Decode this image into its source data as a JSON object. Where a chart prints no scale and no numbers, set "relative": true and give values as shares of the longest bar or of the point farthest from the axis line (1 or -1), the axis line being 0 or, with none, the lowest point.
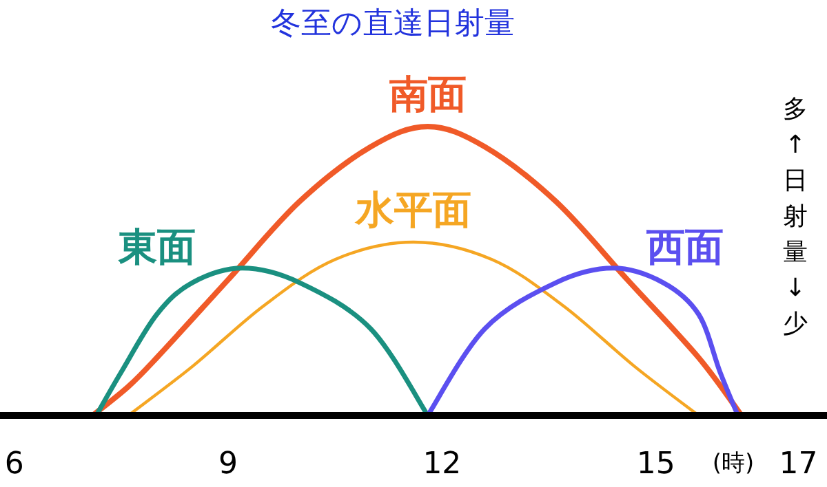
{
  "chart_data": {
    "type": "line",
    "title": "冬至の直達日射量",
    "xlabel": "(時)",
    "relative": true,
    "tick_labels": "x",
    "xlim": [
      5.8,
      17.4
    ],
    "xticks": [
      6,
      9,
      12,
      15,
      17
    ],
    "annotations": [
      "多↑日射量↓少"
    ],
    "series": [
      {
        "name": "南面",
        "color": "#f05a28",
        "x": [
          7.1,
          7.6,
          8,
          9,
          10,
          11,
          11.8,
          12.6,
          13.6,
          14.6,
          15.6,
          16.2
        ],
        "values": [
          0,
          0.1,
          0.2,
          0.47,
          0.74,
          0.93,
          1,
          0.93,
          0.74,
          0.47,
          0.2,
          0
        ]
      },
      {
        "name": "水平面",
        "color": "#f5a623",
        "x": [
          7.6,
          8.5,
          9.5,
          10.5,
          11.6,
          12.7,
          13.7,
          14.7,
          15.6
        ],
        "values": [
          0,
          0.17,
          0.38,
          0.54,
          0.6,
          0.54,
          0.38,
          0.17,
          0
        ]
      },
      {
        "name": "東面",
        "color": "#1a9080",
        "x": [
          7.15,
          7.5,
          8,
          8.5,
          9.2,
          10,
          11,
          11.8
        ],
        "values": [
          0,
          0.15,
          0.35,
          0.46,
          0.51,
          0.46,
          0.3,
          0
        ]
      },
      {
        "name": "西面",
        "color": "#5b4ff0",
        "x": [
          11.8,
          12.6,
          13.6,
          14.4,
          15.1,
          15.6,
          15.9,
          16.15
        ],
        "values": [
          0,
          0.3,
          0.46,
          0.51,
          0.46,
          0.35,
          0.15,
          0
        ]
      }
    ]
  }
}
